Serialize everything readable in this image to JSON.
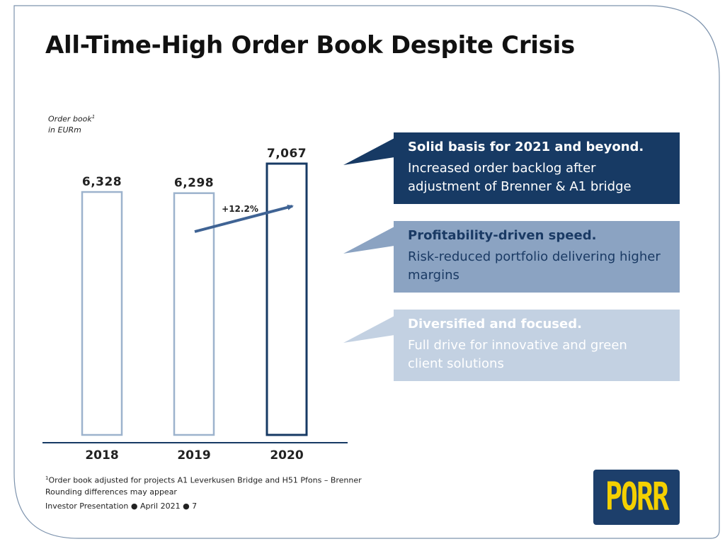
{
  "title": "All-Time-High Order Book Despite Crisis",
  "unit_label": {
    "line1": "Order book",
    "sup": "1",
    "line2": "in EURm"
  },
  "chart_data": {
    "type": "bar",
    "categories": [
      "2018",
      "2019",
      "2020"
    ],
    "values": [
      6328,
      6298,
      7067
    ],
    "value_labels": [
      "6,328",
      "6,298",
      "7,067"
    ],
    "ylim": [
      0,
      7067
    ],
    "bar_style": "outline",
    "bar_colors": [
      "#9db3cd",
      "#9db3cd",
      "#173a64"
    ],
    "annotation": {
      "text": "+12.2%",
      "from": "2019",
      "to": "2020",
      "color": "#3f6394"
    },
    "grid": false,
    "legend": "none"
  },
  "callouts": [
    {
      "heading": "Solid basis for 2021 and beyond.",
      "body": "Increased order backlog after adjustment of Brenner & A1 bridge",
      "bg": "#173a64",
      "text_color": "#ffffff"
    },
    {
      "heading": "Profitability-driven speed.",
      "body": "Risk-reduced portfolio delivering higher margins",
      "bg": "#8ba3c2",
      "text_color": "#1a3a64"
    },
    {
      "heading": "Diversified and focused.",
      "body": "Full drive for innovative and green client solutions",
      "bg": "#c3d1e2",
      "text_color": "#ffffff"
    }
  ],
  "footnote": {
    "sup": "1",
    "line1": "Order book adjusted for projects A1 Leverkusen Bridge and H51 Pfons – Brenner",
    "line2": "Rounding differences may appear"
  },
  "footer": "Investor Presentation ● April 2021 ● 7",
  "logo": "PORR",
  "colors": {
    "frame": "#7d93ad",
    "axis": "#173a64",
    "logo_bg": "#1d3f6b",
    "logo_text": "#f4d000"
  }
}
